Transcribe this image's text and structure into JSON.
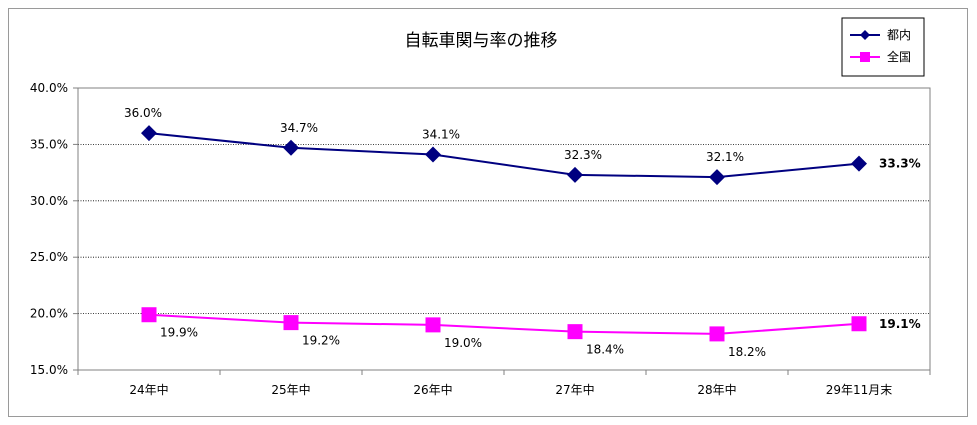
{
  "chart_data": {
    "type": "line",
    "title": "自転車関与率の推移",
    "categories": [
      "24年中",
      "25年中",
      "26年中",
      "27年中",
      "28年中",
      "29年11月末"
    ],
    "ylim": [
      15.0,
      40.0
    ],
    "yticks": [
      "15.0%",
      "20.0%",
      "25.0%",
      "30.0%",
      "35.0%",
      "40.0%"
    ],
    "grid": true,
    "legend_position": "top-right",
    "series": [
      {
        "name": "都内",
        "color": "#000080",
        "marker": "diamond",
        "values": [
          36.0,
          34.7,
          34.1,
          32.3,
          32.1,
          33.3
        ],
        "labels": [
          "36.0%",
          "34.7%",
          "34.1%",
          "32.3%",
          "32.1%",
          "33.3%"
        ]
      },
      {
        "name": "全国",
        "color": "#ff00ff",
        "marker": "square",
        "values": [
          19.9,
          19.2,
          19.0,
          18.4,
          18.2,
          19.1
        ],
        "labels": [
          "19.9%",
          "19.2%",
          "19.0%",
          "18.4%",
          "18.2%",
          "19.1%"
        ]
      }
    ]
  }
}
